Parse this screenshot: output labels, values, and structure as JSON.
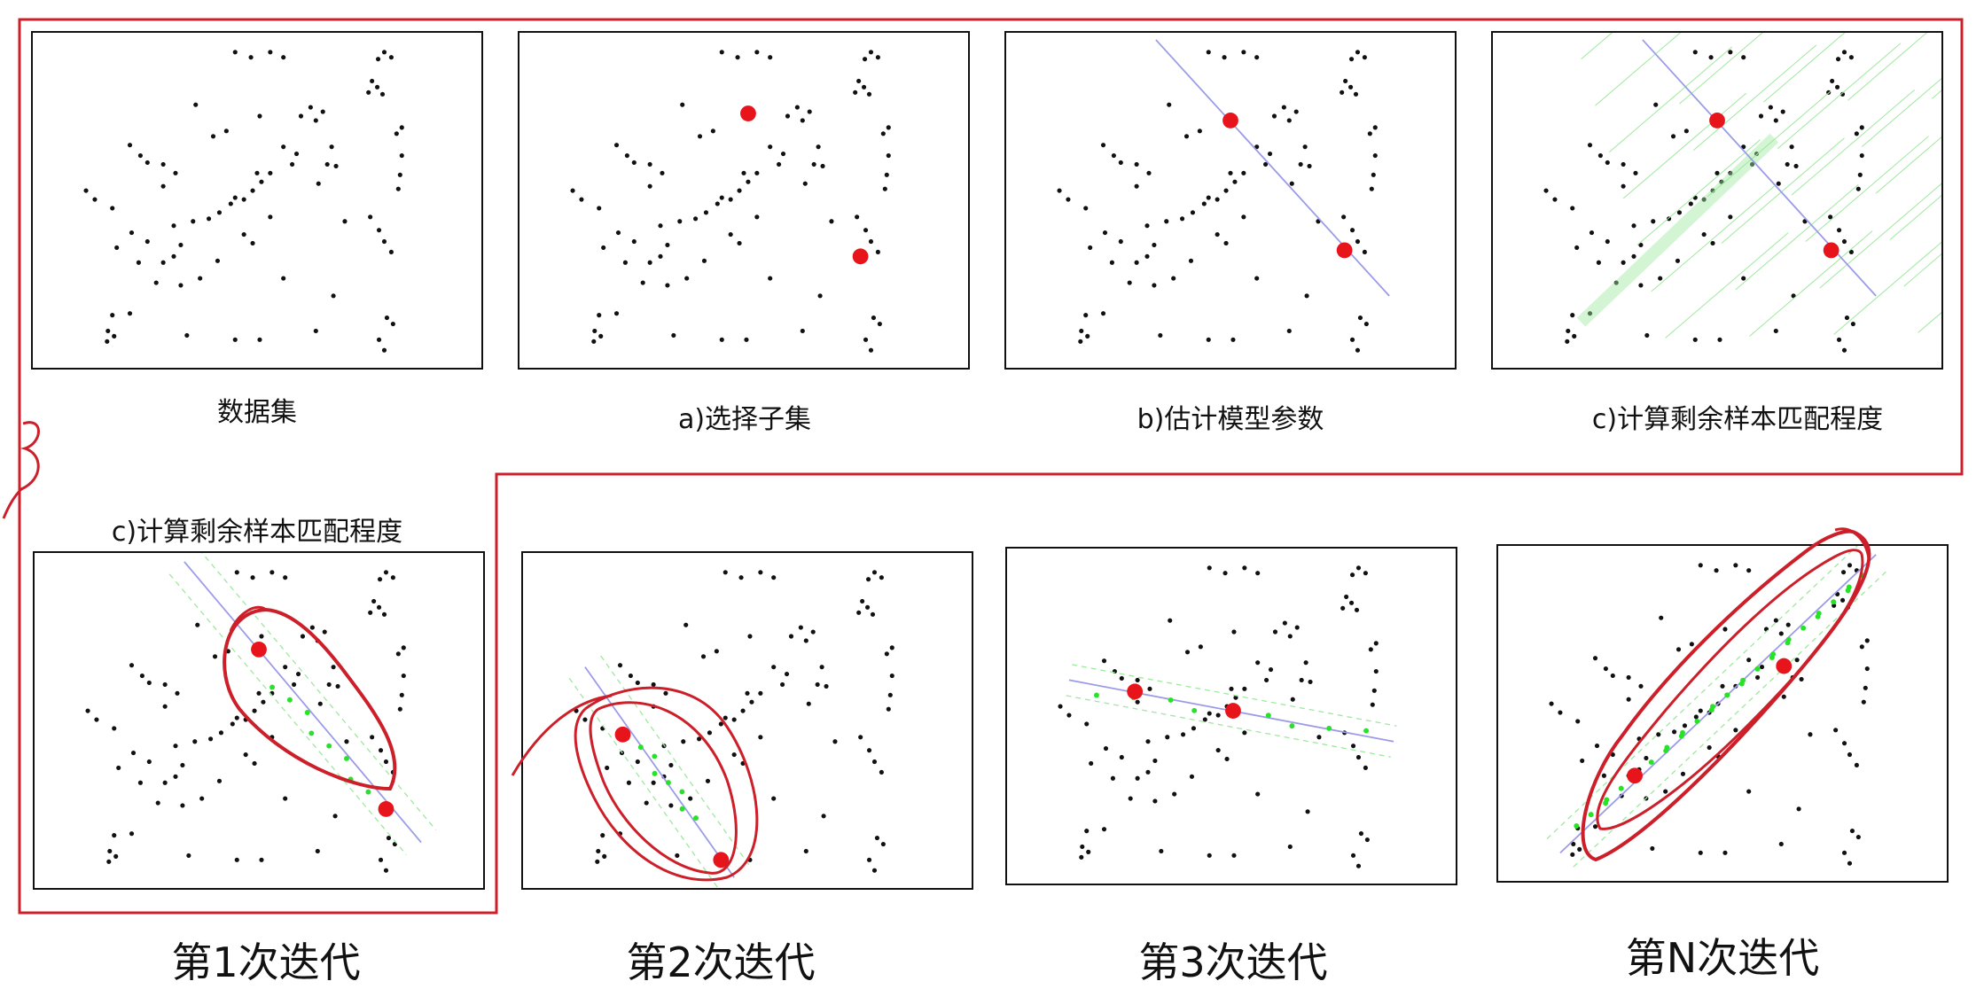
{
  "top_captions": [
    "数据集",
    "a)选择子集",
    "b)估计模型参数",
    "c)计算剩余样本匹配程度"
  ],
  "row2_caption": "c)计算剩余样本匹配程度",
  "iteration_labels": [
    "第1次迭代",
    "第2次迭代",
    "第3次迭代",
    "第N次迭代"
  ],
  "colors": {
    "points": "#111111",
    "selected": "#e8141c",
    "model_line": "#9b9be8",
    "inlier": "#27e327",
    "threshold_band": "#9ee89e",
    "annotation": "#cc1f2a"
  }
}
